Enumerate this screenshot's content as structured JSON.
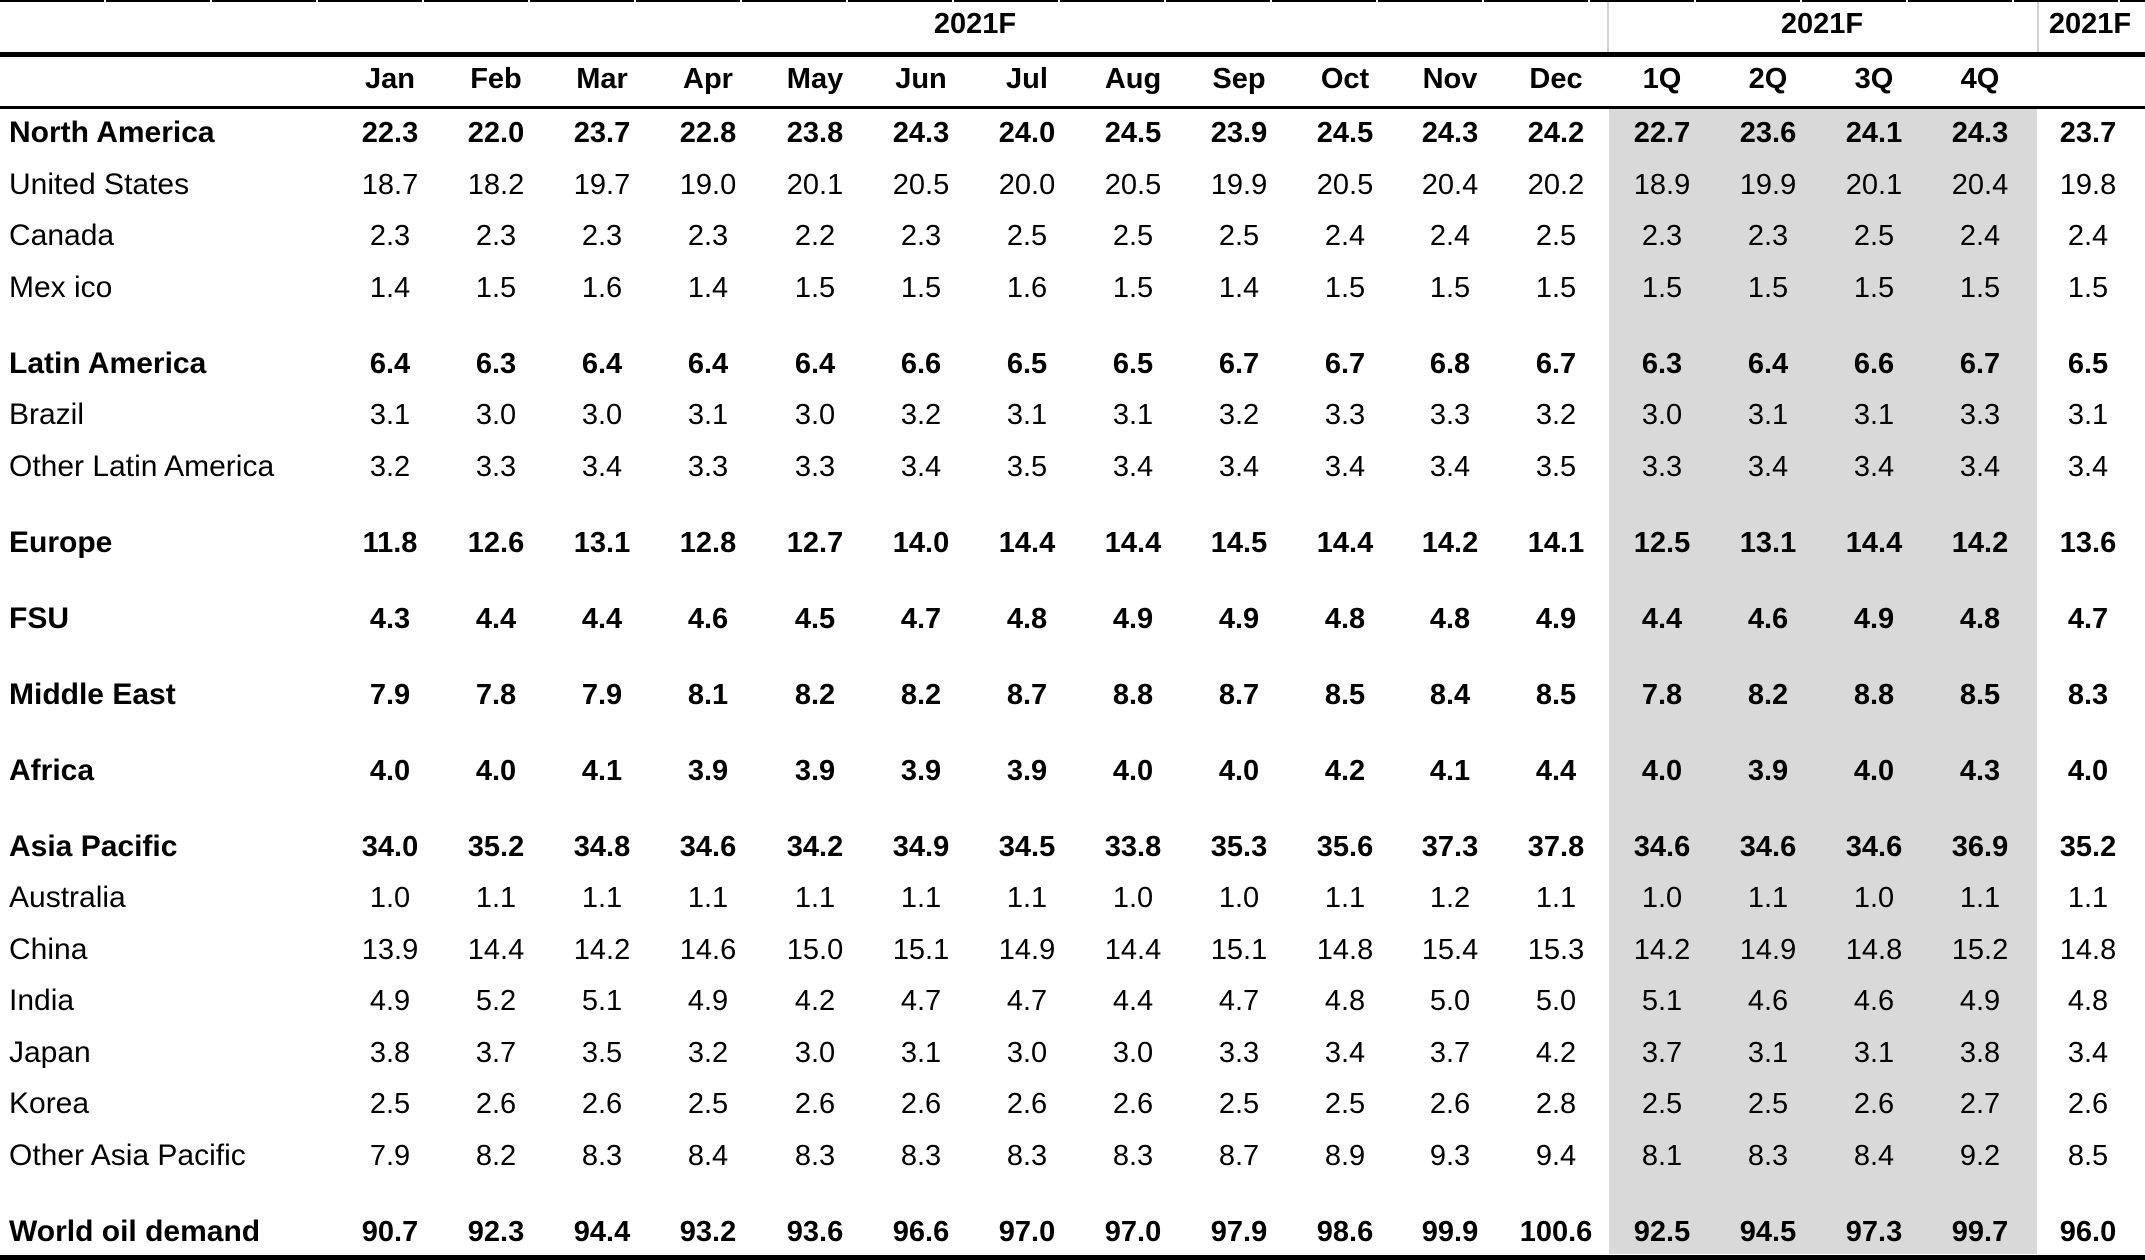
{
  "header": {
    "group_monthly": "2021F",
    "group_quarterly": "2021F",
    "group_annual": "2021F",
    "columns": [
      "Jan",
      "Feb",
      "Mar",
      "Apr",
      "May",
      "Jun",
      "Jul",
      "Aug",
      "Sep",
      "Oct",
      "Nov",
      "Dec",
      "1Q",
      "2Q",
      "3Q",
      "4Q",
      ""
    ]
  },
  "rows": [
    {
      "label": "North America",
      "bold": true,
      "gap": 0,
      "values": [
        "22.3",
        "22.0",
        "23.7",
        "22.8",
        "23.8",
        "24.3",
        "24.0",
        "24.5",
        "23.9",
        "24.5",
        "24.3",
        "24.2",
        "22.7",
        "23.6",
        "24.1",
        "24.3",
        "23.7"
      ]
    },
    {
      "label": "United States",
      "bold": false,
      "gap": 0,
      "values": [
        "18.7",
        "18.2",
        "19.7",
        "19.0",
        "20.1",
        "20.5",
        "20.0",
        "20.5",
        "19.9",
        "20.5",
        "20.4",
        "20.2",
        "18.9",
        "19.9",
        "20.1",
        "20.4",
        "19.8"
      ]
    },
    {
      "label": "Canada",
      "bold": false,
      "gap": 0,
      "values": [
        "2.3",
        "2.3",
        "2.3",
        "2.3",
        "2.2",
        "2.3",
        "2.5",
        "2.5",
        "2.5",
        "2.4",
        "2.4",
        "2.5",
        "2.3",
        "2.3",
        "2.5",
        "2.4",
        "2.4"
      ]
    },
    {
      "label": "Mex ico",
      "bold": false,
      "gap": 0,
      "values": [
        "1.4",
        "1.5",
        "1.6",
        "1.4",
        "1.5",
        "1.5",
        "1.6",
        "1.5",
        "1.4",
        "1.5",
        "1.5",
        "1.5",
        "1.5",
        "1.5",
        "1.5",
        "1.5",
        "1.5"
      ]
    },
    {
      "label": "Latin America",
      "bold": true,
      "gap": 1,
      "values": [
        "6.4",
        "6.3",
        "6.4",
        "6.4",
        "6.4",
        "6.6",
        "6.5",
        "6.5",
        "6.7",
        "6.7",
        "6.8",
        "6.7",
        "6.3",
        "6.4",
        "6.6",
        "6.7",
        "6.5"
      ]
    },
    {
      "label": "Brazil",
      "bold": false,
      "gap": 0,
      "values": [
        "3.1",
        "3.0",
        "3.0",
        "3.1",
        "3.0",
        "3.2",
        "3.1",
        "3.1",
        "3.2",
        "3.3",
        "3.3",
        "3.2",
        "3.0",
        "3.1",
        "3.1",
        "3.3",
        "3.1"
      ]
    },
    {
      "label": "Other Latin America",
      "bold": false,
      "gap": 0,
      "values": [
        "3.2",
        "3.3",
        "3.4",
        "3.3",
        "3.3",
        "3.4",
        "3.5",
        "3.4",
        "3.4",
        "3.4",
        "3.4",
        "3.5",
        "3.3",
        "3.4",
        "3.4",
        "3.4",
        "3.4"
      ]
    },
    {
      "label": "Europe",
      "bold": true,
      "gap": 1,
      "values": [
        "11.8",
        "12.6",
        "13.1",
        "12.8",
        "12.7",
        "14.0",
        "14.4",
        "14.4",
        "14.5",
        "14.4",
        "14.2",
        "14.1",
        "12.5",
        "13.1",
        "14.4",
        "14.2",
        "13.6"
      ]
    },
    {
      "label": "FSU",
      "bold": true,
      "gap": 1,
      "values": [
        "4.3",
        "4.4",
        "4.4",
        "4.6",
        "4.5",
        "4.7",
        "4.8",
        "4.9",
        "4.9",
        "4.8",
        "4.8",
        "4.9",
        "4.4",
        "4.6",
        "4.9",
        "4.8",
        "4.7"
      ]
    },
    {
      "label": "Middle East",
      "bold": true,
      "gap": 1,
      "values": [
        "7.9",
        "7.8",
        "7.9",
        "8.1",
        "8.2",
        "8.2",
        "8.7",
        "8.8",
        "8.7",
        "8.5",
        "8.4",
        "8.5",
        "7.8",
        "8.2",
        "8.8",
        "8.5",
        "8.3"
      ]
    },
    {
      "label": "Africa",
      "bold": true,
      "gap": 1,
      "values": [
        "4.0",
        "4.0",
        "4.1",
        "3.9",
        "3.9",
        "3.9",
        "3.9",
        "4.0",
        "4.0",
        "4.2",
        "4.1",
        "4.4",
        "4.0",
        "3.9",
        "4.0",
        "4.3",
        "4.0"
      ]
    },
    {
      "label": "Asia Pacific",
      "bold": true,
      "gap": 1,
      "values": [
        "34.0",
        "35.2",
        "34.8",
        "34.6",
        "34.2",
        "34.9",
        "34.5",
        "33.8",
        "35.3",
        "35.6",
        "37.3",
        "37.8",
        "34.6",
        "34.6",
        "34.6",
        "36.9",
        "35.2"
      ]
    },
    {
      "label": "Australia",
      "bold": false,
      "gap": 0,
      "values": [
        "1.0",
        "1.1",
        "1.1",
        "1.1",
        "1.1",
        "1.1",
        "1.1",
        "1.0",
        "1.0",
        "1.1",
        "1.2",
        "1.1",
        "1.0",
        "1.1",
        "1.0",
        "1.1",
        "1.1"
      ]
    },
    {
      "label": "China",
      "bold": false,
      "gap": 0,
      "values": [
        "13.9",
        "14.4",
        "14.2",
        "14.6",
        "15.0",
        "15.1",
        "14.9",
        "14.4",
        "15.1",
        "14.8",
        "15.4",
        "15.3",
        "14.2",
        "14.9",
        "14.8",
        "15.2",
        "14.8"
      ]
    },
    {
      "label": "India",
      "bold": false,
      "gap": 0,
      "values": [
        "4.9",
        "5.2",
        "5.1",
        "4.9",
        "4.2",
        "4.7",
        "4.7",
        "4.4",
        "4.7",
        "4.8",
        "5.0",
        "5.0",
        "5.1",
        "4.6",
        "4.6",
        "4.9",
        "4.8"
      ]
    },
    {
      "label": "Japan",
      "bold": false,
      "gap": 0,
      "values": [
        "3.8",
        "3.7",
        "3.5",
        "3.2",
        "3.0",
        "3.1",
        "3.0",
        "3.0",
        "3.3",
        "3.4",
        "3.7",
        "4.2",
        "3.7",
        "3.1",
        "3.1",
        "3.8",
        "3.4"
      ]
    },
    {
      "label": "Korea",
      "bold": false,
      "gap": 0,
      "values": [
        "2.5",
        "2.6",
        "2.6",
        "2.5",
        "2.6",
        "2.6",
        "2.6",
        "2.6",
        "2.5",
        "2.5",
        "2.6",
        "2.8",
        "2.5",
        "2.5",
        "2.6",
        "2.7",
        "2.6"
      ]
    },
    {
      "label": "Other Asia Pacific",
      "bold": false,
      "gap": 0,
      "values": [
        "7.9",
        "8.2",
        "8.3",
        "8.4",
        "8.3",
        "8.3",
        "8.3",
        "8.3",
        "8.7",
        "8.9",
        "9.3",
        "9.4",
        "8.1",
        "8.3",
        "8.4",
        "9.2",
        "8.5"
      ]
    },
    {
      "label": "World oil demand",
      "bold": true,
      "gap": 1,
      "values": [
        "90.7",
        "92.3",
        "94.4",
        "93.2",
        "93.6",
        "96.6",
        "97.0",
        "97.0",
        "97.9",
        "98.6",
        "99.9",
        "100.6",
        "92.5",
        "94.5",
        "97.3",
        "99.7",
        "96.0"
      ]
    }
  ],
  "colors": {
    "quarter_shade": "#d9d9d9",
    "rule": "#000000"
  }
}
